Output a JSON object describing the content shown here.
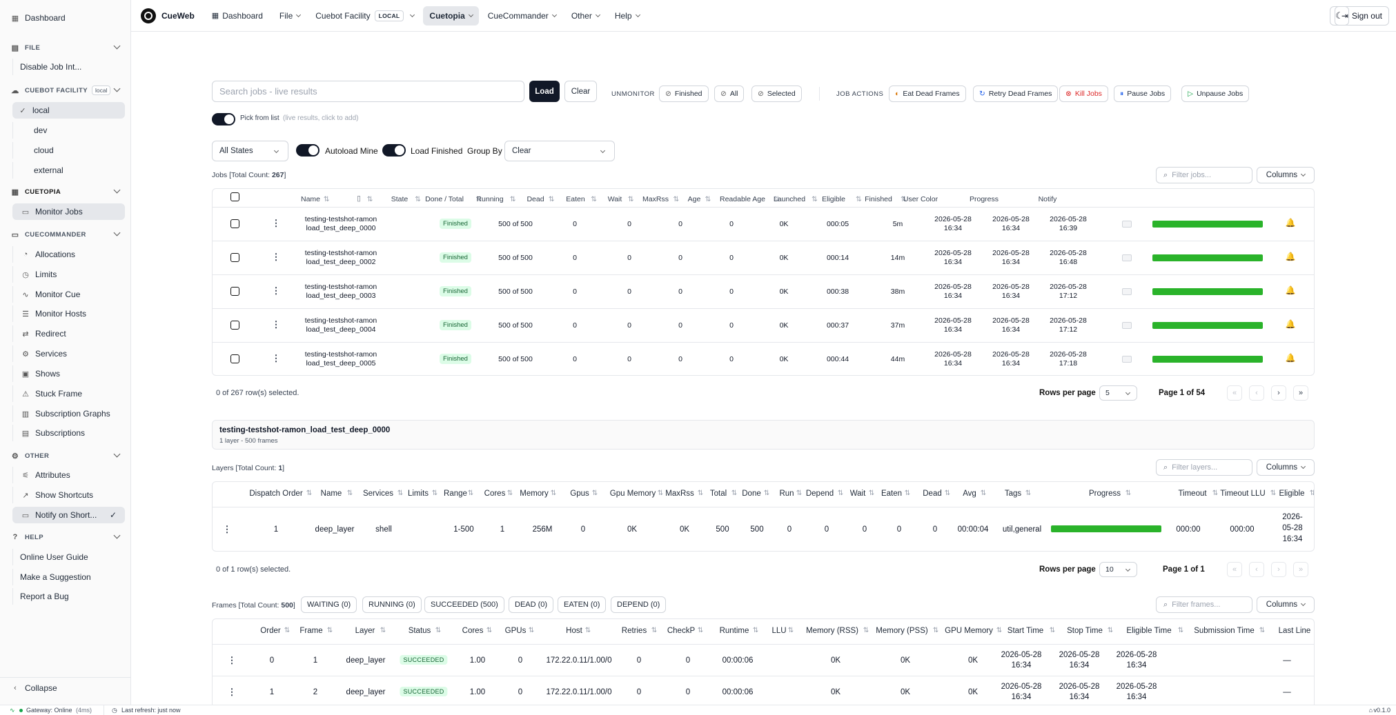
{
  "sidebar": {
    "dashboard": "Dashboard",
    "file_section": "FILE",
    "file_items": [
      "Disable Job Int..."
    ],
    "facility_section": "CUEBOT FACILITY",
    "facility_badge": "local",
    "facility_items": [
      "local",
      "dev",
      "cloud",
      "external"
    ],
    "cuetopia_section": "CUETOPIA",
    "cuetopia_items": [
      "Monitor Jobs"
    ],
    "cuecommander_section": "CUECOMMANDER",
    "cuecommander_items": [
      "Allocations",
      "Limits",
      "Monitor Cue",
      "Monitor Hosts",
      "Redirect",
      "Services",
      "Shows",
      "Stuck Frame",
      "Subscription Graphs",
      "Subscriptions"
    ],
    "other_section": "OTHER",
    "other_items": [
      "Attributes",
      "Show Shortcuts",
      "Notify on Short..."
    ],
    "help_section": "HELP",
    "help_items": [
      "Online User Guide",
      "Make a Suggestion",
      "Report a Bug"
    ],
    "collapse": "Collapse"
  },
  "topbar": {
    "brand": "CueWeb",
    "dashboard": "Dashboard",
    "file": "File",
    "facility": "Cuebot Facility",
    "facility_badge": "LOCAL",
    "cuetopia": "Cuetopia",
    "cuecommander": "CueCommander",
    "other": "Other",
    "help": "Help",
    "signout": "Sign out"
  },
  "toolbar": {
    "search_placeholder": "Search jobs - live results",
    "load": "Load",
    "clear": "Clear",
    "unmonitor": "UNMONITOR",
    "finished": "Finished",
    "all": "All",
    "selected": "Selected",
    "job_actions": "JOB ACTIONS",
    "eat": "Eat Dead Frames",
    "retry": "Retry Dead Frames",
    "kill": "Kill Jobs",
    "pause": "Pause Jobs",
    "unpause": "Unpause Jobs",
    "pick": "Pick from list",
    "pick_hint": "(live results, click to add)",
    "states": "All States",
    "autoload": "Autoload Mine",
    "loadfinished": "Load Finished",
    "groupby": "Group By",
    "groupby_value": "Clear"
  },
  "jobs": {
    "title": "Jobs [Total Count: ",
    "count": "267",
    "title_end": "]",
    "filter_placeholder": "Filter jobs...",
    "columns": "Columns",
    "headers": [
      "Name",
      "",
      "State",
      "Done / Total",
      "Running",
      "Dead",
      "Eaten",
      "Wait",
      "MaxRss",
      "Age",
      "Readable Age",
      "Launched",
      "Eligible",
      "Finished",
      "User Color",
      "Progress",
      "Notify"
    ],
    "rows": [
      {
        "name1": "testing-testshot-ramon",
        "name2": "load_test_deep_0000",
        "state": "Finished",
        "done": "500 of 500",
        "running": "0",
        "dead": "0",
        "eaten": "0",
        "wait": "0",
        "maxrss": "0K",
        "age": "000:05",
        "rage": "5m",
        "l1": "2026-05-28",
        "l2": "16:34",
        "e1": "2026-05-28",
        "e2": "16:34",
        "f1": "2026-05-28",
        "f2": "16:39",
        "progress": 1
      },
      {
        "name1": "testing-testshot-ramon",
        "name2": "load_test_deep_0002",
        "state": "Finished",
        "done": "500 of 500",
        "running": "0",
        "dead": "0",
        "eaten": "0",
        "wait": "0",
        "maxrss": "0K",
        "age": "000:14",
        "rage": "14m",
        "l1": "2026-05-28",
        "l2": "16:34",
        "e1": "2026-05-28",
        "e2": "16:34",
        "f1": "2026-05-28",
        "f2": "16:48",
        "progress": 1
      },
      {
        "name1": "testing-testshot-ramon",
        "name2": "load_test_deep_0003",
        "state": "Finished",
        "done": "500 of 500",
        "running": "0",
        "dead": "0",
        "eaten": "0",
        "wait": "0",
        "maxrss": "0K",
        "age": "000:38",
        "rage": "38m",
        "l1": "2026-05-28",
        "l2": "16:34",
        "e1": "2026-05-28",
        "e2": "16:34",
        "f1": "2026-05-28",
        "f2": "17:12",
        "progress": 1
      },
      {
        "name1": "testing-testshot-ramon",
        "name2": "load_test_deep_0004",
        "state": "Finished",
        "done": "500 of 500",
        "running": "0",
        "dead": "0",
        "eaten": "0",
        "wait": "0",
        "maxrss": "0K",
        "age": "000:37",
        "rage": "37m",
        "l1": "2026-05-28",
        "l2": "16:34",
        "e1": "2026-05-28",
        "e2": "16:34",
        "f1": "2026-05-28",
        "f2": "17:12",
        "progress": 1
      },
      {
        "name1": "testing-testshot-ramon",
        "name2": "load_test_deep_0005",
        "state": "Finished",
        "done": "500 of 500",
        "running": "0",
        "dead": "0",
        "eaten": "0",
        "wait": "0",
        "maxrss": "0K",
        "age": "000:44",
        "rage": "44m",
        "l1": "2026-05-28",
        "l2": "16:34",
        "e1": "2026-05-28",
        "e2": "16:34",
        "f1": "2026-05-28",
        "f2": "17:18",
        "progress": 1
      }
    ],
    "selected": "0 of 267 row(s) selected.",
    "rows_per_page": "Rows per page",
    "rpp_value": "5",
    "page": "Page 1 of 54"
  },
  "detail": {
    "title": "testing-testshot-ramon_load_test_deep_0000",
    "subtitle": "1 layer - 500 frames"
  },
  "layers": {
    "title": "Layers [Total Count: ",
    "count": "1",
    "title_end": "]",
    "filter_placeholder": "Filter layers...",
    "columns": "Columns",
    "headers": [
      "Dispatch Order",
      "Name",
      "Services",
      "Limits",
      "Range",
      "Cores",
      "Memory",
      "Gpus",
      "Gpu Memory",
      "MaxRss",
      "Total",
      "Done",
      "Run",
      "Depend",
      "Wait",
      "Eaten",
      "Dead",
      "Avg",
      "Tags",
      "Progress",
      "Timeout",
      "Timeout LLU",
      "Eligible"
    ],
    "row": {
      "order": "1",
      "name": "deep_layer",
      "services": "shell",
      "limits": "",
      "range": "1-500",
      "cores": "1",
      "memory": "256M",
      "gpus": "0",
      "gpumem": "0K",
      "maxrss": "0K",
      "total": "500",
      "done": "500",
      "run": "0",
      "depend": "0",
      "wait": "0",
      "eaten": "0",
      "dead": "0",
      "avg": "00:00:04",
      "tags": "util,general",
      "progress": 1,
      "timeout": "000:00",
      "timeoutllu": "000:00",
      "el1": "2026-",
      "el2": "05-28",
      "el3": "16:34"
    },
    "selected": "0 of 1 row(s) selected.",
    "rows_per_page": "Rows per page",
    "rpp_value": "10",
    "page": "Page 1 of 1"
  },
  "frames": {
    "title": "Frames [Total Count: ",
    "count": "500",
    "title_end": "]",
    "chips": [
      "WAITING (0)",
      "RUNNING (0)",
      "SUCCEEDED (500)",
      "DEAD (0)",
      "EATEN (0)",
      "DEPEND (0)"
    ],
    "filter_placeholder": "Filter frames...",
    "columns": "Columns",
    "headers": [
      "Order",
      "Frame",
      "Layer",
      "Status",
      "Cores",
      "GPUs",
      "Host",
      "Retries",
      "CheckP",
      "Runtime",
      "LLU",
      "Memory (RSS)",
      "Memory (PSS)",
      "GPU Memory",
      "Start Time",
      "Stop Time",
      "Eligible Time",
      "Submission Time",
      "Last Line"
    ],
    "rows": [
      {
        "order": "0",
        "frame": "1",
        "layer": "deep_layer",
        "status": "SUCCEEDED",
        "cores": "1.00",
        "gpus": "0",
        "host": "172.22.0.11/1.00/0",
        "retries": "0",
        "checkp": "0",
        "runtime": "00:00:06",
        "llu": "",
        "rss": "0K",
        "pss": "0K",
        "gpumem": "0K",
        "s1": "2026-05-28",
        "s2": "16:34",
        "t1": "2026-05-28",
        "t2": "16:34",
        "e1": "2026-05-28",
        "e2": "16:34",
        "sub": "",
        "last": "—"
      },
      {
        "order": "1",
        "frame": "2",
        "layer": "deep_layer",
        "status": "SUCCEEDED",
        "cores": "1.00",
        "gpus": "0",
        "host": "172.22.0.11/1.00/0",
        "retries": "0",
        "checkp": "0",
        "runtime": "00:00:06",
        "llu": "",
        "rss": "0K",
        "pss": "0K",
        "gpumem": "0K",
        "s1": "2026-05-28",
        "s2": "16:34",
        "t1": "2026-05-28",
        "t2": "16:34",
        "e1": "2026-05-28",
        "e2": "16:34",
        "sub": "",
        "last": "—"
      }
    ]
  },
  "status": {
    "gateway": "Gateway: Online",
    "latency": "(4ms)",
    "refresh": "Last refresh: just now",
    "version": "v0.1.0"
  },
  "colors": {
    "accent": "#111827",
    "progress": "#2ab32a",
    "success_bg": "#dcfce7",
    "kill": "#dc2626"
  }
}
